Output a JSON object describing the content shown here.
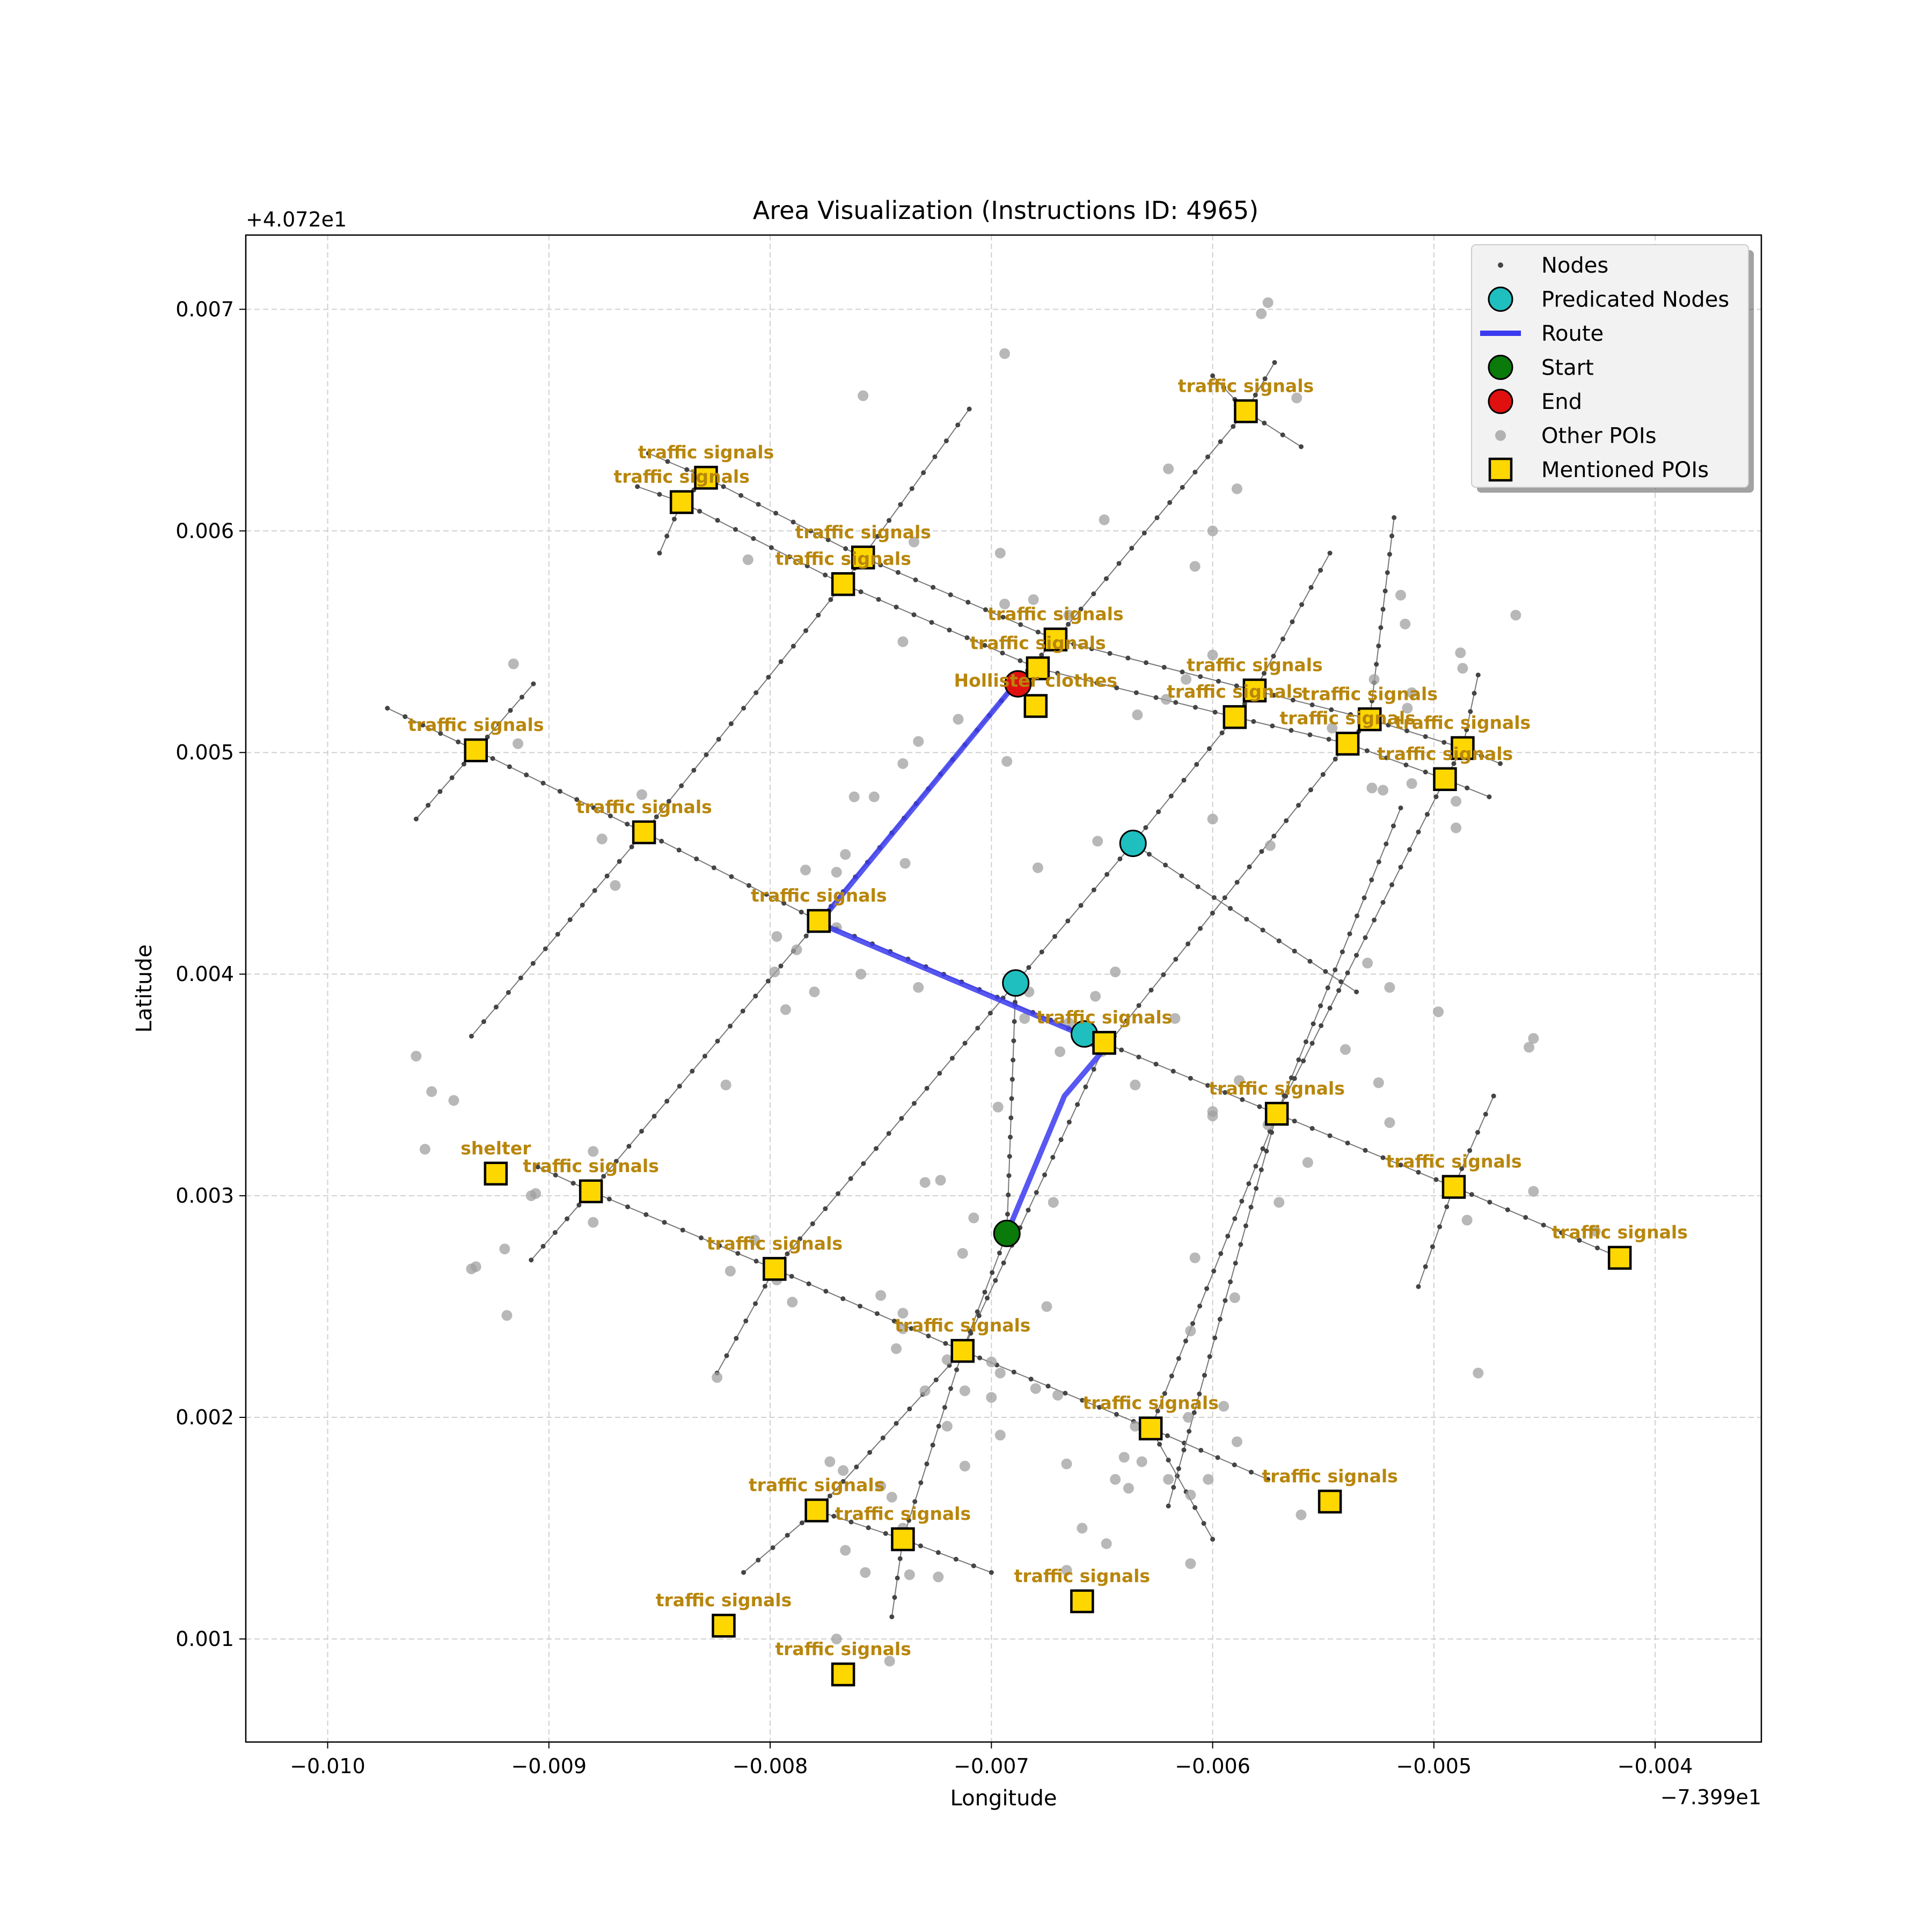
{
  "chart_data": {
    "type": "scatter",
    "title": "Area Visualization (Instructions ID: 4965)",
    "xlabel": "Longitude",
    "ylabel": "Latitude",
    "x_offset_label": "−7.399e1",
    "y_offset_label": "+4.072e1",
    "xlim": [
      -0.01037,
      -0.00352
    ],
    "ylim": [
      0.000535,
      0.007335
    ],
    "x_ticks": [
      -0.01,
      -0.009,
      -0.008,
      -0.007,
      -0.006,
      -0.005,
      -0.004
    ],
    "x_tick_labels": [
      "−0.010",
      "−0.009",
      "−0.008",
      "−0.007",
      "−0.006",
      "−0.005",
      "−0.004"
    ],
    "y_ticks": [
      0.001,
      0.002,
      0.003,
      0.004,
      0.005,
      0.006,
      0.007
    ],
    "y_tick_labels": [
      "0.001",
      "0.002",
      "0.003",
      "0.004",
      "0.005",
      "0.006",
      "0.007"
    ],
    "grid": true,
    "legend_position": "top-right",
    "legend": [
      {
        "label": "Nodes",
        "marker": "small-dot",
        "color": "#444444"
      },
      {
        "label": "Predicated Nodes",
        "marker": "circle",
        "color": "#1fbfbf"
      },
      {
        "label": "Route",
        "marker": "line",
        "color": "#3a3af0"
      },
      {
        "label": "Start",
        "marker": "circle",
        "color": "#0a7a0a"
      },
      {
        "label": "End",
        "marker": "circle",
        "color": "#e01010"
      },
      {
        "label": "Other POIs",
        "marker": "dot",
        "color": "#a0a0a0"
      },
      {
        "label": "Mentioned POIs",
        "marker": "square",
        "color": "#ffd700"
      }
    ],
    "colors": {
      "route": "#3a3af0",
      "predicated": "#1fbfbf",
      "start": "#0a7a0a",
      "end": "#e01010",
      "poi_fill": "#ffd700",
      "poi_label": "#b8860b",
      "node": "#444444",
      "other_poi": "#a0a0a0"
    },
    "route": [
      [
        -0.0069,
        0.0053
      ],
      [
        -0.00778,
        0.00423
      ],
      [
        -0.0066,
        0.00373
      ],
      [
        -0.0065,
        0.00365
      ],
      [
        -0.00667,
        0.00345
      ],
      [
        -0.00693,
        0.00283
      ]
    ],
    "start": [
      -0.00693,
      0.00283
    ],
    "end": [
      -0.00688,
      0.00531
    ],
    "predicated_nodes": [
      [
        -0.00636,
        0.00459
      ],
      [
        -0.00689,
        0.00396
      ],
      [
        -0.00658,
        0.00373
      ]
    ],
    "mentioned_pois": [
      {
        "x": -0.00933,
        "y": 0.00501,
        "label": "traffic signals"
      },
      {
        "x": -0.00857,
        "y": 0.00464,
        "label": "traffic signals"
      },
      {
        "x": -0.00778,
        "y": 0.00424,
        "label": "traffic signals"
      },
      {
        "x": -0.00829,
        "y": 0.00624,
        "label": "traffic signals"
      },
      {
        "x": -0.0084,
        "y": 0.00613,
        "label": "traffic signals"
      },
      {
        "x": -0.00758,
        "y": 0.00588,
        "label": "traffic signals"
      },
      {
        "x": -0.00767,
        "y": 0.00576,
        "label": "traffic signals"
      },
      {
        "x": -0.00671,
        "y": 0.00551,
        "label": "traffic signals"
      },
      {
        "x": -0.00679,
        "y": 0.00538,
        "label": "traffic signals"
      },
      {
        "x": -0.0068,
        "y": 0.00521,
        "label": "Hollister clothes"
      },
      {
        "x": -0.00585,
        "y": 0.00654,
        "label": "traffic signals"
      },
      {
        "x": -0.00581,
        "y": 0.00528,
        "label": "traffic signals"
      },
      {
        "x": -0.0059,
        "y": 0.00516,
        "label": "traffic signals"
      },
      {
        "x": -0.00529,
        "y": 0.00515,
        "label": "traffic signals"
      },
      {
        "x": -0.00539,
        "y": 0.00504,
        "label": "traffic signals"
      },
      {
        "x": -0.00487,
        "y": 0.00502,
        "label": "traffic signals"
      },
      {
        "x": -0.00495,
        "y": 0.00488,
        "label": "traffic signals"
      },
      {
        "x": -0.00649,
        "y": 0.00369,
        "label": "traffic signals"
      },
      {
        "x": -0.00571,
        "y": 0.00337,
        "label": "traffic signals"
      },
      {
        "x": -0.00491,
        "y": 0.00304,
        "label": "traffic signals"
      },
      {
        "x": -0.00416,
        "y": 0.00272,
        "label": "traffic signals"
      },
      {
        "x": -0.00924,
        "y": 0.0031,
        "label": "shelter"
      },
      {
        "x": -0.00881,
        "y": 0.00302,
        "label": "traffic signals"
      },
      {
        "x": -0.00798,
        "y": 0.00267,
        "label": "traffic signals"
      },
      {
        "x": -0.00713,
        "y": 0.0023,
        "label": "traffic signals"
      },
      {
        "x": -0.00628,
        "y": 0.00195,
        "label": "traffic signals"
      },
      {
        "x": -0.00547,
        "y": 0.00162,
        "label": "traffic signals"
      },
      {
        "x": -0.00779,
        "y": 0.00158,
        "label": "traffic signals"
      },
      {
        "x": -0.0074,
        "y": 0.00145,
        "label": "traffic signals"
      },
      {
        "x": -0.00659,
        "y": 0.00117,
        "label": "traffic signals"
      },
      {
        "x": -0.00821,
        "y": 0.00106,
        "label": "traffic signals"
      },
      {
        "x": -0.00767,
        "y": 0.00084,
        "label": "traffic signals"
      }
    ],
    "streets": [
      [
        [
          -0.00973,
          0.0052
        ],
        [
          -0.00933,
          0.00501
        ],
        [
          -0.00857,
          0.00464
        ],
        [
          -0.00778,
          0.00424
        ],
        [
          -0.00649,
          0.00369
        ],
        [
          -0.00571,
          0.00337
        ],
        [
          -0.00491,
          0.00304
        ],
        [
          -0.00418,
          0.00273
        ]
      ],
      [
        [
          -0.00855,
          0.00635
        ],
        [
          -0.00829,
          0.00624
        ],
        [
          -0.00758,
          0.00588
        ],
        [
          -0.00671,
          0.00551
        ],
        [
          -0.00581,
          0.00528
        ],
        [
          -0.00529,
          0.00515
        ],
        [
          -0.00487,
          0.00502
        ],
        [
          -0.0047,
          0.00495
        ]
      ],
      [
        [
          -0.0086,
          0.0062
        ],
        [
          -0.0084,
          0.00613
        ],
        [
          -0.00767,
          0.00576
        ],
        [
          -0.00679,
          0.00538
        ],
        [
          -0.0059,
          0.00516
        ],
        [
          -0.00539,
          0.00504
        ],
        [
          -0.00495,
          0.00488
        ],
        [
          -0.00475,
          0.0048
        ]
      ],
      [
        [
          -0.00905,
          0.00313
        ],
        [
          -0.00881,
          0.00302
        ],
        [
          -0.00798,
          0.00267
        ],
        [
          -0.00713,
          0.0023
        ],
        [
          -0.00628,
          0.00195
        ],
        [
          -0.00575,
          0.00172
        ]
      ],
      [
        [
          -0.00779,
          0.00158
        ],
        [
          -0.0074,
          0.00145
        ],
        [
          -0.007,
          0.0013
        ]
      ],
      [
        [
          -0.0096,
          0.0047
        ],
        [
          -0.00933,
          0.00501
        ],
        [
          -0.00907,
          0.00531
        ]
      ],
      [
        [
          -0.0085,
          0.0059
        ],
        [
          -0.0084,
          0.00613
        ],
        [
          -0.00829,
          0.00624
        ]
      ],
      [
        [
          -0.00935,
          0.00372
        ],
        [
          -0.00857,
          0.00464
        ],
        [
          -0.00767,
          0.00576
        ],
        [
          -0.0071,
          0.00655
        ]
      ],
      [
        [
          -0.00908,
          0.00271
        ],
        [
          -0.00881,
          0.00302
        ],
        [
          -0.00778,
          0.00424
        ],
        [
          -0.0069,
          0.0053
        ],
        [
          -0.00671,
          0.00551
        ],
        [
          -0.00585,
          0.00654
        ],
        [
          -0.00572,
          0.00676
        ]
      ],
      [
        [
          -0.00824,
          0.0022
        ],
        [
          -0.00798,
          0.00267
        ],
        [
          -0.00689,
          0.00396
        ],
        [
          -0.00636,
          0.00459
        ],
        [
          -0.0059,
          0.00516
        ],
        [
          -0.00581,
          0.00528
        ],
        [
          -0.00547,
          0.0059
        ]
      ],
      [
        [
          -0.00812,
          0.0013
        ],
        [
          -0.00779,
          0.00158
        ],
        [
          -0.00713,
          0.0023
        ],
        [
          -0.0065,
          0.00365
        ],
        [
          -0.00539,
          0.00504
        ],
        [
          -0.00529,
          0.00515
        ],
        [
          -0.00518,
          0.00606
        ]
      ],
      [
        [
          -0.00745,
          0.0011
        ],
        [
          -0.0074,
          0.00145
        ],
        [
          -0.00713,
          0.0023
        ],
        [
          -0.00693,
          0.00283
        ],
        [
          -0.00689,
          0.00396
        ]
      ],
      [
        [
          -0.006,
          0.00145
        ],
        [
          -0.00628,
          0.00195
        ],
        [
          -0.00571,
          0.00337
        ],
        [
          -0.00495,
          0.00488
        ],
        [
          -0.00487,
          0.00502
        ],
        [
          -0.0048,
          0.00535
        ]
      ],
      [
        [
          -0.0062,
          0.0016
        ],
        [
          -0.00571,
          0.00337
        ],
        [
          -0.00515,
          0.00475
        ]
      ],
      [
        [
          -0.00507,
          0.00259
        ],
        [
          -0.00491,
          0.00304
        ],
        [
          -0.00473,
          0.00345
        ]
      ],
      [
        [
          -0.00636,
          0.00459
        ],
        [
          -0.0057,
          0.00415
        ],
        [
          -0.00535,
          0.00392
        ]
      ],
      [
        [
          -0.006,
          0.0067
        ],
        [
          -0.00585,
          0.00654
        ],
        [
          -0.0056,
          0.00638
        ]
      ]
    ],
    "other_pois": [
      [
        -0.00694,
        0.0068
      ],
      [
        -0.00758,
        0.00661
      ],
      [
        -0.00578,
        0.00698
      ],
      [
        -0.00575,
        0.00703
      ],
      [
        -0.00562,
        0.0066
      ],
      [
        -0.0062,
        0.00628
      ],
      [
        -0.006,
        0.006
      ],
      [
        -0.00608,
        0.00584
      ],
      [
        -0.00589,
        0.00619
      ],
      [
        -0.00649,
        0.00605
      ],
      [
        -0.00735,
        0.00595
      ],
      [
        -0.00696,
        0.0059
      ],
      [
        -0.0081,
        0.00587
      ],
      [
        -0.00665,
        0.00562
      ],
      [
        -0.00694,
        0.00567
      ],
      [
        -0.00681,
        0.00569
      ],
      [
        -0.00916,
        0.0054
      ],
      [
        -0.00914,
        0.00504
      ],
      [
        -0.0074,
        0.0055
      ],
      [
        -0.00715,
        0.00515
      ],
      [
        -0.00733,
        0.00505
      ],
      [
        -0.0074,
        0.00495
      ],
      [
        -0.00693,
        0.00496
      ],
      [
        -0.00762,
        0.0048
      ],
      [
        -0.00753,
        0.0048
      ],
      [
        -0.00652,
        0.0046
      ],
      [
        -0.006,
        0.0047
      ],
      [
        -0.00574,
        0.00458
      ],
      [
        -0.00739,
        0.0045
      ],
      [
        -0.00766,
        0.00454
      ],
      [
        -0.0077,
        0.00446
      ],
      [
        -0.00784,
        0.00447
      ],
      [
        -0.0077,
        0.00421
      ],
      [
        -0.00797,
        0.00417
      ],
      [
        -0.00788,
        0.00411
      ],
      [
        -0.00679,
        0.00448
      ],
      [
        -0.00858,
        0.00481
      ],
      [
        -0.00876,
        0.00461
      ],
      [
        -0.0087,
        0.0044
      ],
      [
        -0.00644,
        0.00401
      ],
      [
        -0.00653,
        0.0039
      ],
      [
        -0.00683,
        0.00392
      ],
      [
        -0.00733,
        0.00394
      ],
      [
        -0.0078,
        0.00392
      ],
      [
        -0.00759,
        0.004
      ],
      [
        -0.00798,
        0.00401
      ],
      [
        -0.00793,
        0.00384
      ],
      [
        -0.00665,
        0.00378
      ],
      [
        -0.00669,
        0.00365
      ],
      [
        -0.0065,
        0.00365
      ],
      [
        -0.00617,
        0.0038
      ],
      [
        -0.006,
        0.00338
      ],
      [
        -0.006,
        0.00336
      ],
      [
        -0.00635,
        0.0035
      ],
      [
        -0.00588,
        0.00352
      ],
      [
        -0.00575,
        0.00332
      ],
      [
        -0.0057,
        0.00297
      ],
      [
        -0.00557,
        0.00315
      ],
      [
        -0.0054,
        0.00366
      ],
      [
        -0.0053,
        0.00405
      ],
      [
        -0.0052,
        0.00394
      ],
      [
        -0.00525,
        0.00351
      ],
      [
        -0.0052,
        0.00333
      ],
      [
        -0.00498,
        0.00383
      ],
      [
        -0.0096,
        0.00363
      ],
      [
        -0.00953,
        0.00347
      ],
      [
        -0.00943,
        0.00343
      ],
      [
        -0.00956,
        0.00321
      ],
      [
        -0.00935,
        0.00267
      ],
      [
        -0.00933,
        0.00268
      ],
      [
        -0.0092,
        0.00276
      ],
      [
        -0.00908,
        0.003
      ],
      [
        -0.00906,
        0.00301
      ],
      [
        -0.0088,
        0.0032
      ],
      [
        -0.0088,
        0.00288
      ],
      [
        -0.00919,
        0.00246
      ],
      [
        -0.0082,
        0.0035
      ],
      [
        -0.00807,
        0.0028
      ],
      [
        -0.00818,
        0.00266
      ],
      [
        -0.00824,
        0.00218
      ],
      [
        -0.00797,
        0.00262
      ],
      [
        -0.0079,
        0.00252
      ],
      [
        -0.0073,
        0.00306
      ],
      [
        -0.00723,
        0.00307
      ],
      [
        -0.00697,
        0.0034
      ],
      [
        -0.00685,
        0.0038
      ],
      [
        -0.00708,
        0.0029
      ],
      [
        -0.00713,
        0.00274
      ],
      [
        -0.00672,
        0.00297
      ],
      [
        -0.00675,
        0.0025
      ],
      [
        -0.0075,
        0.00255
      ],
      [
        -0.0074,
        0.00247
      ],
      [
        -0.0074,
        0.0024
      ],
      [
        -0.00743,
        0.00231
      ],
      [
        -0.0072,
        0.00226
      ],
      [
        -0.007,
        0.00225
      ],
      [
        -0.00696,
        0.0022
      ],
      [
        -0.0073,
        0.00212
      ],
      [
        -0.00712,
        0.00212
      ],
      [
        -0.007,
        0.00209
      ],
      [
        -0.0067,
        0.0021
      ],
      [
        -0.0068,
        0.00213
      ],
      [
        -0.0072,
        0.00196
      ],
      [
        -0.00696,
        0.00192
      ],
      [
        -0.00635,
        0.00196
      ],
      [
        -0.00611,
        0.002
      ],
      [
        -0.00595,
        0.00205
      ],
      [
        -0.00589,
        0.00189
      ],
      [
        -0.0064,
        0.00182
      ],
      [
        -0.00632,
        0.0018
      ],
      [
        -0.00644,
        0.00172
      ],
      [
        -0.00638,
        0.00168
      ],
      [
        -0.0062,
        0.00172
      ],
      [
        -0.0061,
        0.00165
      ],
      [
        -0.00602,
        0.00172
      ],
      [
        -0.00666,
        0.00179
      ],
      [
        -0.00712,
        0.00178
      ],
      [
        -0.0075,
        0.00169
      ],
      [
        -0.00745,
        0.00164
      ],
      [
        -0.00773,
        0.0018
      ],
      [
        -0.00767,
        0.00176
      ],
      [
        -0.00766,
        0.0014
      ],
      [
        -0.0074,
        0.0015
      ],
      [
        -0.00737,
        0.00129
      ],
      [
        -0.00757,
        0.0013
      ],
      [
        -0.00724,
        0.00128
      ],
      [
        -0.00666,
        0.00131
      ],
      [
        -0.00659,
        0.0015
      ],
      [
        -0.00648,
        0.00143
      ],
      [
        -0.0061,
        0.00134
      ],
      [
        -0.0056,
        0.00156
      ],
      [
        -0.0077,
        0.001
      ],
      [
        -0.00746,
        0.0009
      ],
      [
        -0.00513,
        0.00558
      ],
      [
        -0.00515,
        0.00571
      ],
      [
        -0.00463,
        0.00562
      ],
      [
        -0.00488,
        0.00545
      ],
      [
        -0.00487,
        0.00538
      ],
      [
        -0.0051,
        0.00527
      ],
      [
        -0.00527,
        0.00533
      ],
      [
        -0.00512,
        0.0052
      ],
      [
        -0.0051,
        0.00486
      ],
      [
        -0.00523,
        0.00483
      ],
      [
        -0.00528,
        0.00484
      ],
      [
        -0.0049,
        0.00466
      ],
      [
        -0.0049,
        0.00478
      ],
      [
        -0.00546,
        0.00511
      ],
      [
        -0.00621,
        0.00524
      ],
      [
        -0.00612,
        0.00533
      ],
      [
        -0.006,
        0.00544
      ],
      [
        -0.00634,
        0.00517
      ],
      [
        -0.00457,
        0.00367
      ],
      [
        -0.00455,
        0.00371
      ],
      [
        -0.00485,
        0.00289
      ],
      [
        -0.0048,
        0.0022
      ],
      [
        -0.00455,
        0.00302
      ],
      [
        -0.00427,
        0.00284
      ],
      [
        -0.0059,
        0.00254
      ],
      [
        -0.0061,
        0.00239
      ],
      [
        -0.00608,
        0.00272
      ]
    ]
  }
}
